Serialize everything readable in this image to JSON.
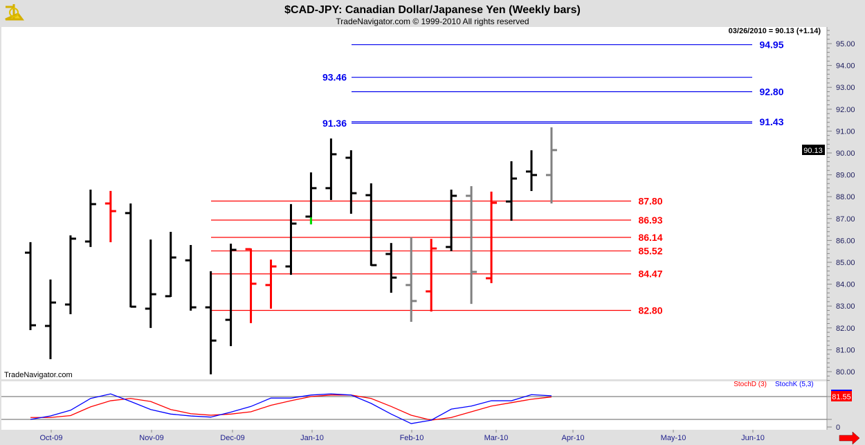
{
  "header": {
    "title": "$CAD-JPY:  Canadian Dollar/Japanese Yen  (Weekly bars)",
    "copyright": "TradeNavigator.com © 1999-2010 All rights reserved",
    "last_readout": "03/26/2010 = 90.13 (+1.14)",
    "watermark": "TradeNavigator.com",
    "logo_icon": "sextant-icon"
  },
  "chart_data": [
    {
      "type": "ohlc",
      "title": "$CAD-JPY:  Canadian Dollar/Japanese Yen  (Weekly bars)",
      "ylim": [
        79.5,
        95.8
      ],
      "y_ticks": [
        "95.00",
        "94.00",
        "93.00",
        "92.00",
        "91.00",
        "90.00",
        "89.00",
        "88.00",
        "87.00",
        "86.00",
        "85.00",
        "84.00",
        "83.00",
        "82.00",
        "81.00",
        "80.00"
      ],
      "x_ticks": [
        "Oct-09",
        "Nov-09",
        "Dec-09",
        "Jan-10",
        "Feb-10",
        "Mar-10",
        "Apr-10",
        "May-10",
        "Jun-10"
      ],
      "last_price_label": "90.13",
      "colors": {
        "up": "#000000",
        "red": "#ff0000",
        "gray": "#808080",
        "green": "#00e000",
        "blue_level": "#0000ee",
        "red_level": "#ff0000"
      },
      "bars": [
        {
          "o": 85.44,
          "h": 85.89,
          "l": 81.93,
          "c": 82.12,
          "color": "black"
        },
        {
          "o": 82.09,
          "h": 84.18,
          "l": 80.6,
          "c": 83.16,
          "color": "black"
        },
        {
          "o": 83.07,
          "h": 86.2,
          "l": 82.66,
          "c": 86.08,
          "color": "black"
        },
        {
          "o": 85.95,
          "h": 88.29,
          "l": 85.73,
          "c": 87.66,
          "color": "black"
        },
        {
          "o": 87.69,
          "h": 88.23,
          "l": 85.95,
          "c": 87.34,
          "color": "red"
        },
        {
          "o": 87.25,
          "h": 87.66,
          "l": 82.97,
          "c": 82.97,
          "color": "black"
        },
        {
          "o": 82.88,
          "h": 86.01,
          "l": 82.03,
          "c": 83.54,
          "color": "black"
        },
        {
          "o": 83.45,
          "h": 86.36,
          "l": 83.45,
          "c": 85.22,
          "color": "black"
        },
        {
          "o": 85.09,
          "h": 85.76,
          "l": 82.82,
          "c": 82.94,
          "color": "black"
        },
        {
          "o": 82.94,
          "h": 84.56,
          "l": 79.91,
          "c": 81.42,
          "color": "black"
        },
        {
          "o": 82.37,
          "h": 85.82,
          "l": 81.2,
          "c": 85.57,
          "color": "black"
        },
        {
          "o": 85.6,
          "h": 85.6,
          "l": 82.25,
          "c": 84.02,
          "color": "red"
        },
        {
          "o": 83.96,
          "h": 85.09,
          "l": 82.91,
          "c": 84.81,
          "color": "red"
        },
        {
          "o": 84.81,
          "h": 87.63,
          "l": 84.46,
          "c": 86.77,
          "color": "black"
        },
        {
          "o": 87.09,
          "h": 89.08,
          "l": 86.77,
          "c": 88.39,
          "color": "black",
          "green_tail": true
        },
        {
          "o": 88.39,
          "h": 90.63,
          "l": 87.88,
          "c": 89.94,
          "color": "black"
        },
        {
          "o": 89.78,
          "h": 90.09,
          "l": 87.25,
          "c": 88.16,
          "color": "black"
        },
        {
          "o": 88.07,
          "h": 88.58,
          "l": 84.87,
          "c": 84.87,
          "color": "black"
        },
        {
          "o": 85.38,
          "h": 85.85,
          "l": 83.64,
          "c": 84.3,
          "color": "black"
        },
        {
          "o": 83.96,
          "h": 86.11,
          "l": 82.31,
          "c": 83.23,
          "color": "gray"
        },
        {
          "o": 83.67,
          "h": 86.04,
          "l": 82.78,
          "c": 85.63,
          "color": "red"
        },
        {
          "o": 85.7,
          "h": 88.29,
          "l": 85.54,
          "c": 88.04,
          "color": "black"
        },
        {
          "o": 88.04,
          "h": 88.45,
          "l": 83.13,
          "c": 84.56,
          "color": "gray"
        },
        {
          "o": 84.27,
          "h": 88.2,
          "l": 84.08,
          "c": 87.72,
          "color": "red"
        },
        {
          "o": 87.78,
          "h": 89.59,
          "l": 86.93,
          "c": 88.83,
          "color": "black"
        },
        {
          "o": 89.15,
          "h": 90.09,
          "l": 88.29,
          "c": 88.99,
          "color": "black"
        },
        {
          "o": 88.99,
          "h": 91.14,
          "l": 87.72,
          "c": 90.13,
          "color": "gray"
        }
      ],
      "levels": [
        {
          "value": 94.95,
          "label": "94.95",
          "group": "blue",
          "label_side": "right"
        },
        {
          "value": 93.46,
          "label": "93.46",
          "group": "blue",
          "label_side": "left"
        },
        {
          "value": 92.8,
          "label": "92.80",
          "group": "blue",
          "label_side": "right"
        },
        {
          "value": 91.43,
          "label": "91.43",
          "group": "blue",
          "label_side": "right"
        },
        {
          "value": 91.36,
          "label": "91.36",
          "group": "blue",
          "label_side": "left"
        },
        {
          "value": 87.8,
          "label": "87.80",
          "group": "red",
          "label_side": "right"
        },
        {
          "value": 86.93,
          "label": "86.93",
          "group": "red",
          "label_side": "right"
        },
        {
          "value": 86.14,
          "label": "86.14",
          "group": "red",
          "label_side": "right"
        },
        {
          "value": 85.52,
          "label": "85.52",
          "group": "red",
          "label_side": "right"
        },
        {
          "value": 84.47,
          "label": "84.47",
          "group": "red",
          "label_side": "right"
        },
        {
          "value": 82.8,
          "label": "82.80",
          "group": "red",
          "label_side": "right"
        }
      ]
    },
    {
      "type": "line",
      "title": "Stochastic",
      "ylim": [
        0,
        100
      ],
      "y_ticks": [
        "0"
      ],
      "reference_lines": [
        20,
        80
      ],
      "last_value_label": "81.55",
      "series": [
        {
          "name": "StochD (3)",
          "color": "#ff0000",
          "values": [
            25,
            25,
            30,
            53,
            69,
            75,
            67,
            46,
            35,
            31,
            34,
            40,
            57,
            69,
            80,
            84,
            84,
            75,
            54,
            31,
            18,
            25,
            40,
            55,
            64,
            73,
            79
          ]
        },
        {
          "name": "StochK (5,3)",
          "color": "#0000ff",
          "values": [
            20,
            29,
            44,
            75,
            87,
            67,
            46,
            34,
            29,
            26,
            39,
            54,
            76,
            76,
            84,
            87,
            84,
            62,
            34,
            9,
            18,
            47,
            55,
            69,
            69,
            85,
            82
          ]
        }
      ]
    }
  ],
  "footer": {
    "scroll_right_icon": "red-arrow-right-icon"
  }
}
